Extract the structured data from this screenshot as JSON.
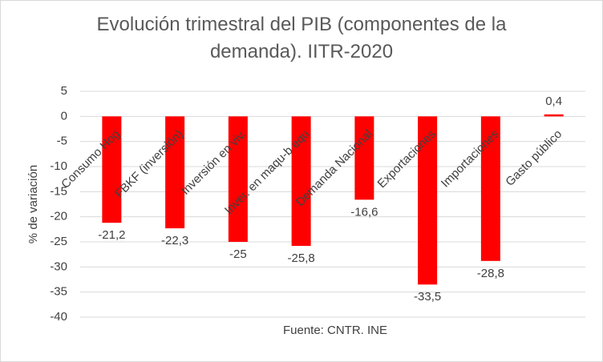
{
  "chart_data": {
    "type": "bar",
    "title": "Evolución trimestral del PIB (componentes de la demanda). IITR-2020",
    "x_label": "Fuente: CNTR. INE",
    "y_label": "% de variación",
    "categories": [
      "Consumo Hog",
      "FBKF (inversión)",
      "Inversión en viv.",
      "Inver. en maqu-b equ",
      "Demanda Nacional",
      "Exportaciones",
      "Importaciones",
      "Gasto público"
    ],
    "values": [
      -21.2,
      -22.3,
      -25,
      -25.8,
      -16.6,
      -33.5,
      -28.8,
      0.4
    ],
    "value_labels": [
      "-21,2",
      "-22,3",
      "-25",
      "-25,8",
      "-16,6",
      "-33,5",
      "-28,8",
      "0,4"
    ],
    "color": "#ff0000",
    "ylim": [
      -40,
      5
    ],
    "yticks": [
      -40,
      -35,
      -30,
      -25,
      -20,
      -15,
      -10,
      -5,
      0,
      5
    ],
    "grid": true
  }
}
